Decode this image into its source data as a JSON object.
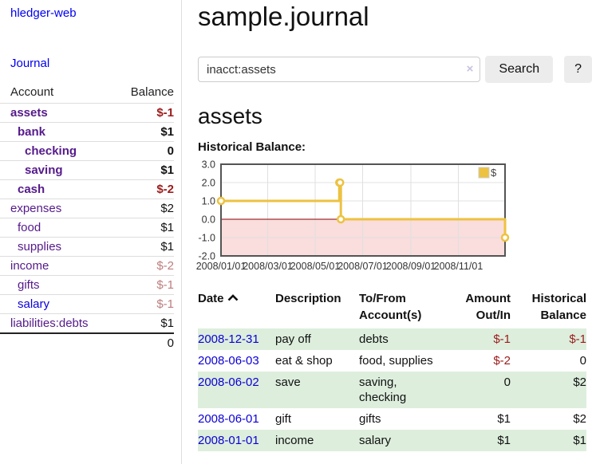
{
  "colors": {
    "link_purple": "#551a8b",
    "link_blue": "#0b00d6",
    "negative_strong": "#9c1b1b",
    "negative_soft": "#bd7d7d",
    "row_green": "#ddeedd",
    "chart_line": "#edc240",
    "negative_region_fill": "#fadddd",
    "zero_line": "#8b0000",
    "grid_line": "#e0e0e0",
    "chart_border": "#545454"
  },
  "sidebar": {
    "app_title": "hledger-web",
    "journal_link": "Journal",
    "table": {
      "account_header": "Account",
      "balance_header": "Balance",
      "rows": [
        {
          "name": "assets",
          "balance": "$-1",
          "indent": 1,
          "bold": true,
          "neg": "strong"
        },
        {
          "name": "bank",
          "balance": "$1",
          "indent": 2,
          "bold": true,
          "neg": "none"
        },
        {
          "name": "checking",
          "balance": "0",
          "indent": 3,
          "bold": true,
          "neg": "none"
        },
        {
          "name": "saving",
          "balance": "$1",
          "indent": 3,
          "bold": true,
          "neg": "none"
        },
        {
          "name": "cash",
          "balance": "$-2",
          "indent": 2,
          "bold": true,
          "neg": "strong"
        },
        {
          "name": "expenses",
          "balance": "$2",
          "indent": 1,
          "bold": false,
          "neg": "none"
        },
        {
          "name": "food",
          "balance": "$1",
          "indent": 2,
          "bold": false,
          "neg": "none"
        },
        {
          "name": "supplies",
          "balance": "$1",
          "indent": 2,
          "bold": false,
          "neg": "none"
        },
        {
          "name": "income",
          "balance": "$-2",
          "indent": 1,
          "bold": false,
          "neg": "soft"
        },
        {
          "name": "gifts",
          "balance": "$-1",
          "indent": 2,
          "bold": false,
          "neg": "soft"
        },
        {
          "name": "salary",
          "balance": "$-1",
          "indent": 2,
          "bold": false,
          "neg": "soft",
          "link": "blue"
        },
        {
          "name": "liabilities:debts",
          "balance": "$1",
          "indent": 1,
          "bold": false,
          "neg": "none"
        }
      ],
      "total": "0"
    }
  },
  "header": {
    "title": "sample.journal"
  },
  "search": {
    "query": "inacct:assets",
    "clear_icon": "×",
    "search_label": "Search",
    "help_label": "?"
  },
  "account_page": {
    "title": "assets",
    "chart_label": "Historical Balance:"
  },
  "chart_data": {
    "type": "line",
    "step": true,
    "title": "Historical Balance",
    "series": [
      {
        "name": "$",
        "x": [
          "2008-01-01",
          "2008-06-01",
          "2008-06-02",
          "2008-06-03",
          "2008-12-31"
        ],
        "values": [
          1,
          2,
          2,
          0,
          -1
        ]
      }
    ],
    "xlim": [
      "2008-01-01",
      "2008-12-31"
    ],
    "ylim": [
      -2,
      3
    ],
    "y_ticks": [
      3.0,
      2.0,
      1.0,
      0.0,
      -1.0,
      -2.0
    ],
    "x_ticks": [
      "2008/01/01",
      "2008/03/01",
      "2008/05/01",
      "2008/07/01",
      "2008/09/01",
      "2008/11/01"
    ],
    "grid": true,
    "legend": {
      "label": "$",
      "position": "top-right"
    },
    "negative_region": true
  },
  "register_table": {
    "columns": [
      "Date",
      "Description",
      "To/From Account(s)",
      "Amount Out/In",
      "Historical Balance"
    ],
    "sort_column": "Date",
    "sort_direction": "ascending",
    "rows": [
      {
        "date": "2008-12-31",
        "description": "pay off",
        "accounts": "debts",
        "amount": "$-1",
        "balance": "$-1"
      },
      {
        "date": "2008-06-03",
        "description": "eat & shop",
        "accounts": "food, supplies",
        "amount": "$-2",
        "balance": "0"
      },
      {
        "date": "2008-06-02",
        "description": "save",
        "accounts": "saving, checking",
        "amount": "0",
        "balance": "$2"
      },
      {
        "date": "2008-06-01",
        "description": "gift",
        "accounts": "gifts",
        "amount": "$1",
        "balance": "$2"
      },
      {
        "date": "2008-01-01",
        "description": "income",
        "accounts": "salary",
        "amount": "$1",
        "balance": "$1"
      }
    ]
  }
}
